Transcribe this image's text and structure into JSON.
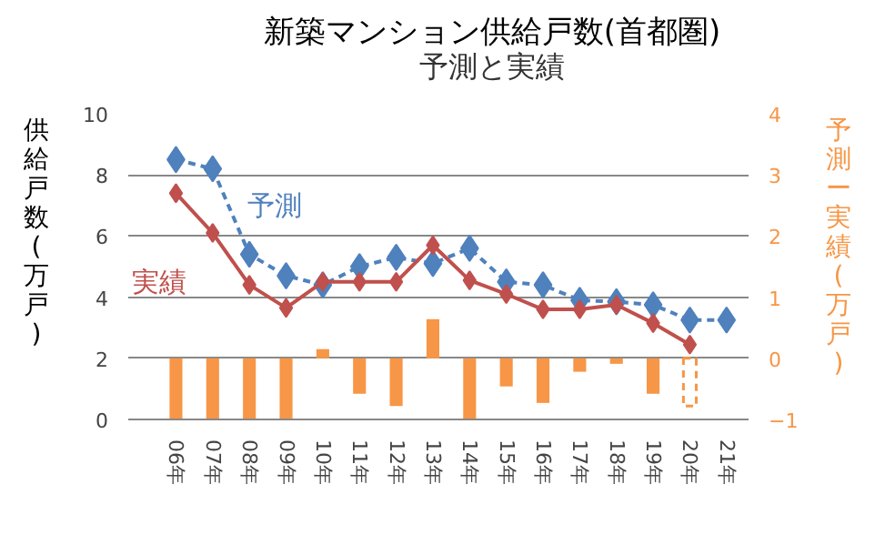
{
  "chart_data": {
    "type": "line",
    "title": "新築マンション供給戸数(首都圏)",
    "subtitle": "予測と実績",
    "ylabel": "供給戸数(万戸)",
    "y2label": "予測ー実績(万戸)",
    "categories": [
      "06年",
      "07年",
      "08年",
      "09年",
      "10年",
      "11年",
      "12年",
      "13年",
      "14年",
      "15年",
      "16年",
      "17年",
      "18年",
      "19年",
      "20年",
      "21年"
    ],
    "ylim": [
      0,
      10
    ],
    "yticks": [
      0,
      2,
      4,
      6,
      8,
      10
    ],
    "y2lim": [
      -1,
      4
    ],
    "y2ticks": [
      -1,
      0,
      1,
      2,
      3,
      4
    ],
    "grid": "y",
    "marker": "diamond",
    "series": [
      {
        "name": "予測",
        "color": "#4f81bd",
        "line_style": "dashed",
        "values": [
          8.5,
          8.2,
          5.4,
          4.7,
          4.4,
          5.0,
          5.3,
          5.1,
          5.6,
          4.5,
          4.4,
          3.9,
          3.85,
          3.75,
          3.25,
          3.25
        ]
      },
      {
        "name": "実績",
        "color": "#c0504d",
        "line_style": "solid",
        "values": [
          7.4,
          6.1,
          4.4,
          3.65,
          4.5,
          4.5,
          4.5,
          5.7,
          4.55,
          4.1,
          3.6,
          3.6,
          3.75,
          3.15,
          2.45,
          null
        ]
      },
      {
        "type": "bar",
        "axis": "y2",
        "color": "#f79646",
        "line_style": "solid",
        "values": [
          -1,
          -1,
          -1,
          -1,
          0.15,
          -0.58,
          -0.78,
          0.64,
          -1,
          -0.46,
          -0.73,
          -0.22,
          -0.09,
          -0.58,
          null,
          null
        ]
      },
      {
        "type": "bar",
        "axis": "y2",
        "color": "#f79646",
        "line_style": "dashed",
        "values": [
          null,
          null,
          null,
          null,
          null,
          null,
          null,
          null,
          null,
          null,
          null,
          null,
          null,
          null,
          -0.78,
          null
        ]
      }
    ]
  }
}
